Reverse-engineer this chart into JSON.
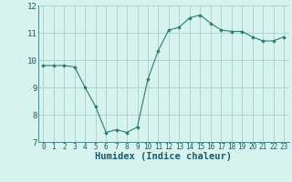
{
  "x": [
    0,
    1,
    2,
    3,
    4,
    5,
    6,
    7,
    8,
    9,
    10,
    11,
    12,
    13,
    14,
    15,
    16,
    17,
    18,
    19,
    20,
    21,
    22,
    23
  ],
  "y": [
    9.8,
    9.8,
    9.8,
    9.75,
    9.0,
    8.3,
    7.35,
    7.45,
    7.35,
    7.55,
    9.3,
    10.35,
    11.1,
    11.2,
    11.55,
    11.65,
    11.35,
    11.1,
    11.05,
    11.05,
    10.85,
    10.7,
    10.7,
    10.85
  ],
  "xlabel": "Humidex (Indice chaleur)",
  "ylim": [
    7,
    12
  ],
  "xlim": [
    -0.5,
    23.5
  ],
  "yticks": [
    7,
    8,
    9,
    10,
    11,
    12
  ],
  "xticks": [
    0,
    1,
    2,
    3,
    4,
    5,
    6,
    7,
    8,
    9,
    10,
    11,
    12,
    13,
    14,
    15,
    16,
    17,
    18,
    19,
    20,
    21,
    22,
    23
  ],
  "line_color": "#2D7D6F",
  "marker_color": "#2D7D6F",
  "bg_color": "#D6F3EE",
  "grid_color": "#AACFCA",
  "tick_label_color": "#1A5A6E",
  "xlabel_fontsize": 7.5,
  "xtick_fontsize": 5.5,
  "ytick_fontsize": 6.5
}
